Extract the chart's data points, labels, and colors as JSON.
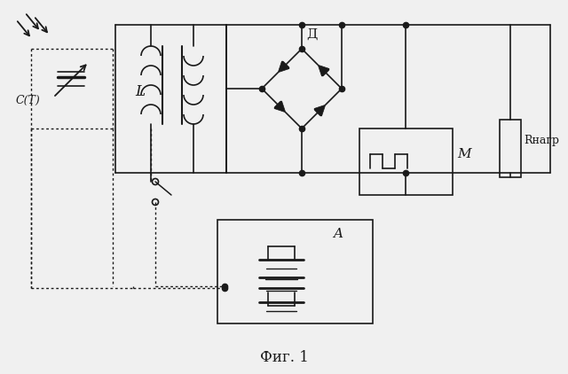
{
  "bg_color": "#f0f0f0",
  "line_color": "#1a1a1a",
  "title": "Фиг. 1",
  "title_fontsize": 12,
  "label_C": "C(T)",
  "label_L": "L",
  "label_D": "Д",
  "label_M": "M",
  "label_R": "Rнагр",
  "label_A": "A",
  "figw": 6.4,
  "figh": 4.22,
  "dpi": 100
}
